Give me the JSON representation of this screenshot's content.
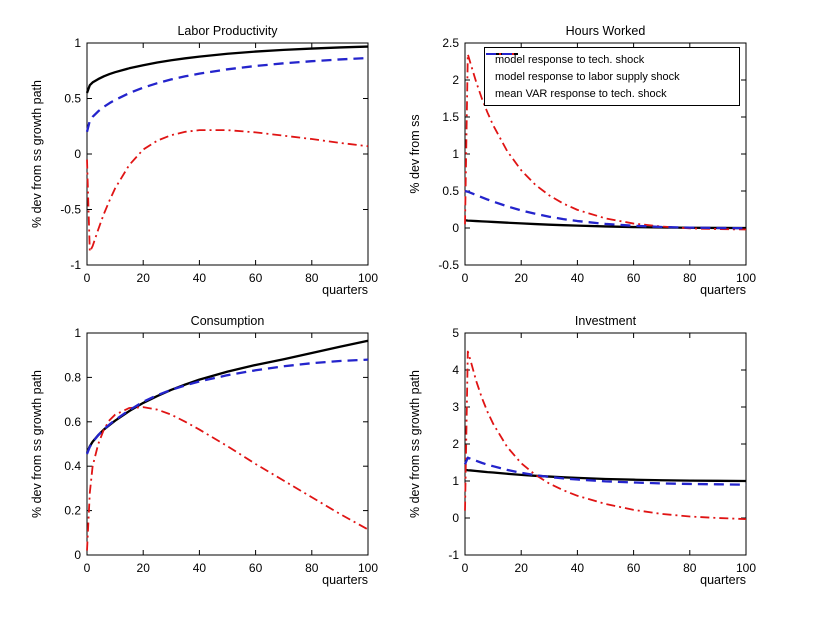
{
  "figure": {
    "background": "#ffffff"
  },
  "legend": {
    "position": "top-right-subplot-upper",
    "entries": [
      {
        "label": "model response to tech. shock",
        "color": "#000000",
        "style": "solid"
      },
      {
        "label": "model response to labor supply shock",
        "color": "#e01414",
        "style": "dashdot"
      },
      {
        "label": "mean VAR response to tech. shock",
        "color": "#2424cc",
        "style": "dashed"
      }
    ]
  },
  "chart_data": [
    {
      "type": "line",
      "title": "Labor Productivity",
      "ylabel": "% dev from ss growth path",
      "xlabel": "quarters",
      "xlim": [
        0,
        100
      ],
      "ylim": [
        -1,
        1
      ],
      "xticks": [
        0,
        20,
        40,
        60,
        80,
        100
      ],
      "yticks": [
        -1,
        -0.5,
        0,
        0.5,
        1
      ],
      "grid": false,
      "x": [
        0,
        1,
        2,
        4,
        6,
        8,
        10,
        15,
        20,
        25,
        30,
        35,
        40,
        50,
        60,
        70,
        80,
        90,
        100
      ],
      "series": [
        {
          "name": "model response to tech. shock",
          "color": "#000000",
          "style": "solid",
          "width": 2.3,
          "values": [
            0.55,
            0.62,
            0.645,
            0.675,
            0.7,
            0.72,
            0.737,
            0.772,
            0.8,
            0.824,
            0.845,
            0.862,
            0.877,
            0.903,
            0.923,
            0.938,
            0.95,
            0.96,
            0.968
          ]
        },
        {
          "name": "model response to labor supply shock",
          "color": "#e01414",
          "style": "dashdot",
          "width": 1.8,
          "values": [
            -0.05,
            -0.88,
            -0.83,
            -0.68,
            -0.54,
            -0.42,
            -0.31,
            -0.1,
            0.04,
            0.12,
            0.17,
            0.2,
            0.215,
            0.215,
            0.195,
            0.165,
            0.135,
            0.1,
            0.07
          ]
        },
        {
          "name": "mean VAR response to tech. shock",
          "color": "#2424cc",
          "style": "dashed",
          "width": 2.3,
          "values": [
            0.2,
            0.3,
            0.335,
            0.385,
            0.425,
            0.458,
            0.487,
            0.548,
            0.598,
            0.638,
            0.672,
            0.7,
            0.724,
            0.763,
            0.793,
            0.817,
            0.836,
            0.852,
            0.865
          ]
        }
      ]
    },
    {
      "type": "line",
      "title": "Hours Worked",
      "ylabel": "% dev from ss",
      "xlabel": "quarters",
      "xlim": [
        0,
        100
      ],
      "ylim": [
        -0.5,
        2.5
      ],
      "xticks": [
        0,
        20,
        40,
        60,
        80,
        100
      ],
      "yticks": [
        -0.5,
        0,
        0.5,
        1,
        1.5,
        2,
        2.5
      ],
      "grid": false,
      "x": [
        0,
        1,
        2,
        4,
        6,
        8,
        10,
        15,
        20,
        25,
        30,
        35,
        40,
        50,
        60,
        70,
        80,
        90,
        100
      ],
      "series": [
        {
          "name": "model response to tech. shock",
          "color": "#000000",
          "style": "solid",
          "width": 2.3,
          "values": [
            0.105,
            0.1,
            0.098,
            0.094,
            0.09,
            0.086,
            0.082,
            0.072,
            0.062,
            0.053,
            0.045,
            0.038,
            0.032,
            0.021,
            0.013,
            0.007,
            0.003,
            0.001,
            0.0
          ]
        },
        {
          "name": "model response to labor supply shock",
          "color": "#e01414",
          "style": "dashdot",
          "width": 1.8,
          "values": [
            0.05,
            2.35,
            2.22,
            1.97,
            1.75,
            1.56,
            1.39,
            1.04,
            0.78,
            0.585,
            0.44,
            0.33,
            0.245,
            0.13,
            0.06,
            0.02,
            -0.005,
            -0.015,
            -0.02
          ]
        },
        {
          "name": "mean VAR response to tech. shock",
          "color": "#2424cc",
          "style": "dashed",
          "width": 2.3,
          "values": [
            0.5,
            0.49,
            0.475,
            0.445,
            0.415,
            0.385,
            0.357,
            0.293,
            0.238,
            0.192,
            0.152,
            0.12,
            0.094,
            0.055,
            0.03,
            0.014,
            0.005,
            0.0,
            -0.003
          ]
        }
      ]
    },
    {
      "type": "line",
      "title": "Consumption",
      "ylabel": "% dev from ss growth path",
      "xlabel": "quarters",
      "xlim": [
        0,
        100
      ],
      "ylim": [
        0,
        1
      ],
      "xticks": [
        0,
        20,
        40,
        60,
        80,
        100
      ],
      "yticks": [
        0,
        0.2,
        0.4,
        0.6,
        0.8,
        1
      ],
      "grid": false,
      "x": [
        0,
        1,
        2,
        4,
        6,
        8,
        10,
        15,
        20,
        25,
        30,
        35,
        40,
        50,
        60,
        70,
        80,
        90,
        100
      ],
      "series": [
        {
          "name": "model response to tech. shock",
          "color": "#000000",
          "style": "solid",
          "width": 2.3,
          "values": [
            0.46,
            0.49,
            0.51,
            0.54,
            0.565,
            0.585,
            0.605,
            0.648,
            0.685,
            0.716,
            0.744,
            0.768,
            0.79,
            0.826,
            0.856,
            0.882,
            0.91,
            0.938,
            0.965
          ]
        },
        {
          "name": "model response to labor supply shock",
          "color": "#e01414",
          "style": "dashdot",
          "width": 1.8,
          "values": [
            0.02,
            0.28,
            0.4,
            0.5,
            0.565,
            0.607,
            0.632,
            0.662,
            0.666,
            0.655,
            0.632,
            0.6,
            0.565,
            0.49,
            0.41,
            0.335,
            0.26,
            0.185,
            0.115
          ]
        },
        {
          "name": "mean VAR response to tech. shock",
          "color": "#2424cc",
          "style": "dashed",
          "width": 2.3,
          "values": [
            0.455,
            0.487,
            0.508,
            0.54,
            0.566,
            0.588,
            0.608,
            0.652,
            0.69,
            0.72,
            0.744,
            0.764,
            0.782,
            0.81,
            0.832,
            0.85,
            0.864,
            0.874,
            0.88
          ]
        }
      ]
    },
    {
      "type": "line",
      "title": "Investment",
      "ylabel": "% dev from ss growth path",
      "xlabel": "quarters",
      "xlim": [
        0,
        100
      ],
      "ylim": [
        -1,
        5
      ],
      "xticks": [
        0,
        20,
        40,
        60,
        80,
        100
      ],
      "yticks": [
        -1,
        0,
        1,
        2,
        3,
        4,
        5
      ],
      "grid": false,
      "x": [
        0,
        1,
        2,
        4,
        6,
        8,
        10,
        15,
        20,
        25,
        30,
        35,
        40,
        50,
        60,
        70,
        80,
        90,
        100
      ],
      "series": [
        {
          "name": "model response to tech. shock",
          "color": "#000000",
          "style": "solid",
          "width": 2.3,
          "values": [
            1.3,
            1.29,
            1.285,
            1.27,
            1.255,
            1.24,
            1.23,
            1.195,
            1.165,
            1.14,
            1.12,
            1.1,
            1.085,
            1.055,
            1.035,
            1.02,
            1.01,
            1.005,
            1.0
          ]
        },
        {
          "name": "model response to labor supply shock",
          "color": "#e01414",
          "style": "dashdot",
          "width": 1.8,
          "values": [
            0.2,
            4.5,
            4.25,
            3.7,
            3.25,
            2.87,
            2.55,
            1.92,
            1.48,
            1.17,
            0.93,
            0.75,
            0.6,
            0.38,
            0.22,
            0.11,
            0.04,
            0.0,
            -0.03
          ]
        },
        {
          "name": "mean VAR response to tech. shock",
          "color": "#2424cc",
          "style": "dashed",
          "width": 2.3,
          "values": [
            1.45,
            1.63,
            1.6,
            1.545,
            1.49,
            1.44,
            1.4,
            1.3,
            1.22,
            1.16,
            1.11,
            1.07,
            1.04,
            0.99,
            0.96,
            0.935,
            0.92,
            0.91,
            0.9
          ]
        }
      ]
    }
  ]
}
